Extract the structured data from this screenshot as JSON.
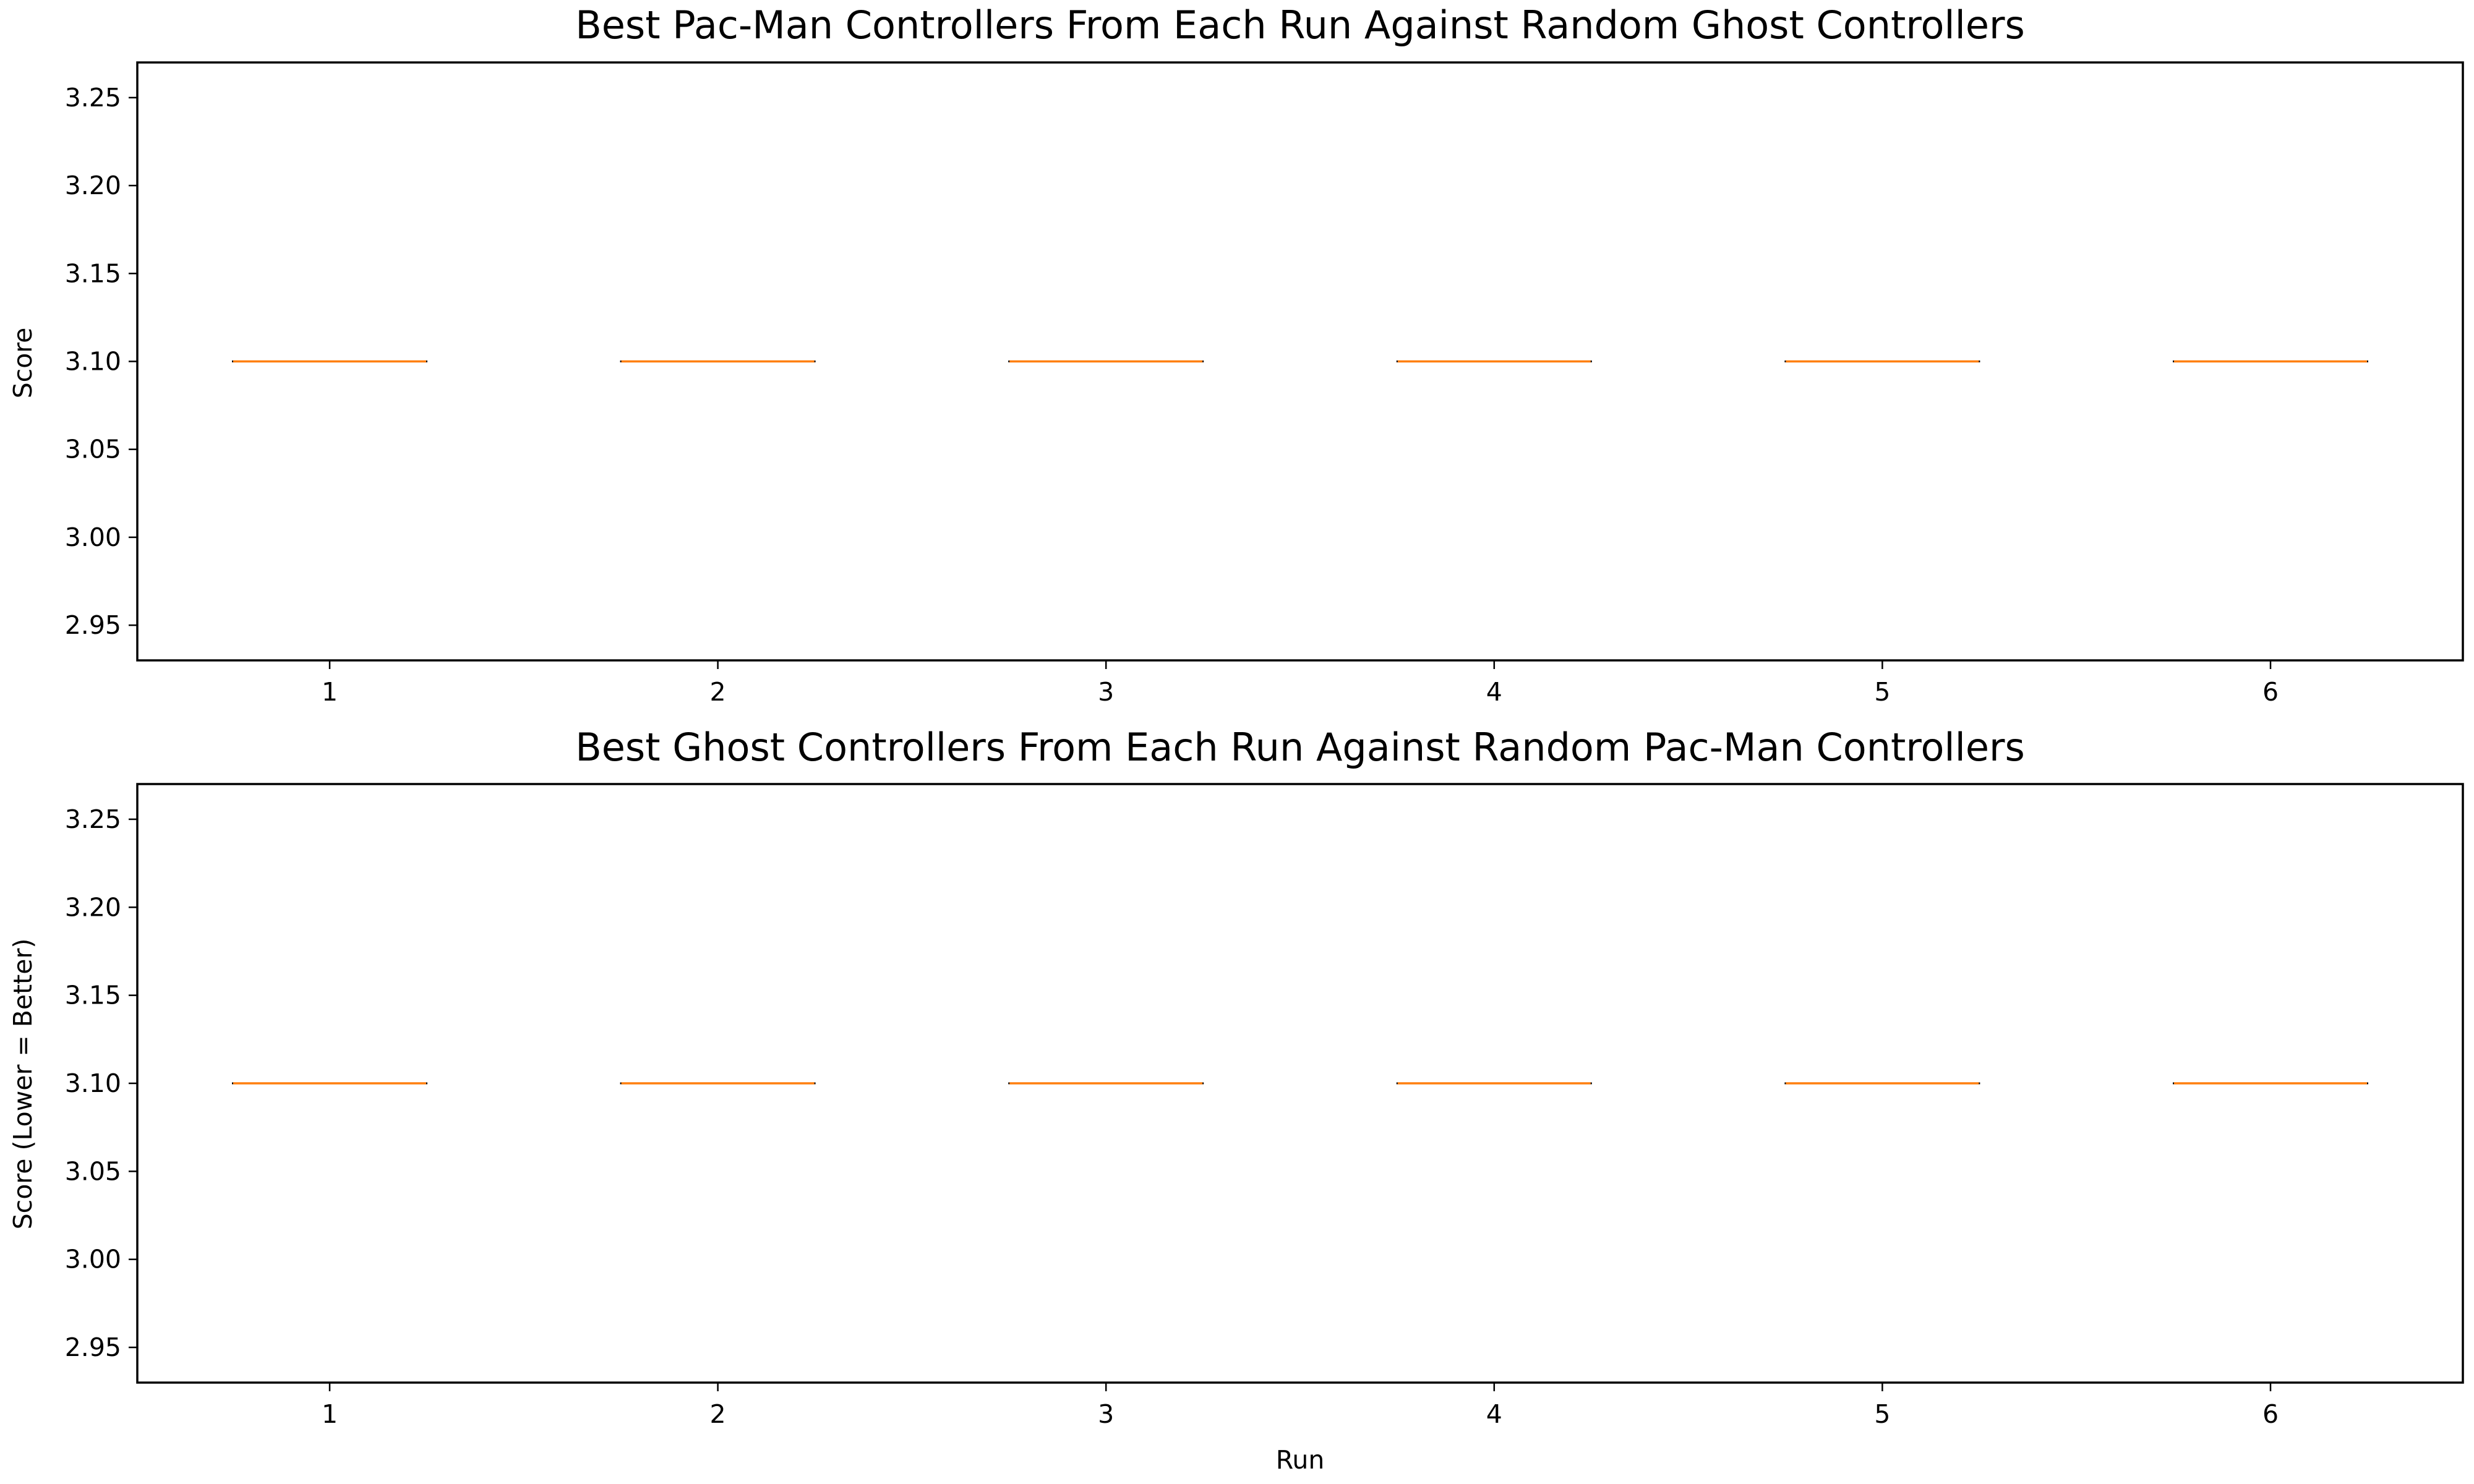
{
  "chart_data": [
    {
      "type": "box",
      "title": "Best Pac-Man Controllers From Each Run Against Random Ghost Controllers",
      "xlabel": "",
      "ylabel": "Score",
      "categories": [
        "1",
        "2",
        "3",
        "4",
        "5",
        "6"
      ],
      "values": [
        3.1,
        3.1,
        3.1,
        3.1,
        3.1,
        3.1
      ],
      "yticks": [
        "2.95",
        "3.00",
        "3.05",
        "3.10",
        "3.15",
        "3.20",
        "3.25"
      ],
      "ylim": [
        2.93,
        3.27
      ],
      "median_color": "#ff7f0e",
      "grid": false
    },
    {
      "type": "box",
      "title": "Best Ghost Controllers From Each Run Against Random Pac-Man Controllers",
      "xlabel": "Run",
      "ylabel": "Score (Lower = Better)",
      "categories": [
        "1",
        "2",
        "3",
        "4",
        "5",
        "6"
      ],
      "values": [
        3.1,
        3.1,
        3.1,
        3.1,
        3.1,
        3.1
      ],
      "yticks": [
        "2.95",
        "3.00",
        "3.05",
        "3.10",
        "3.15",
        "3.20",
        "3.25"
      ],
      "ylim": [
        2.93,
        3.27
      ],
      "median_color": "#ff7f0e",
      "grid": false
    }
  ]
}
